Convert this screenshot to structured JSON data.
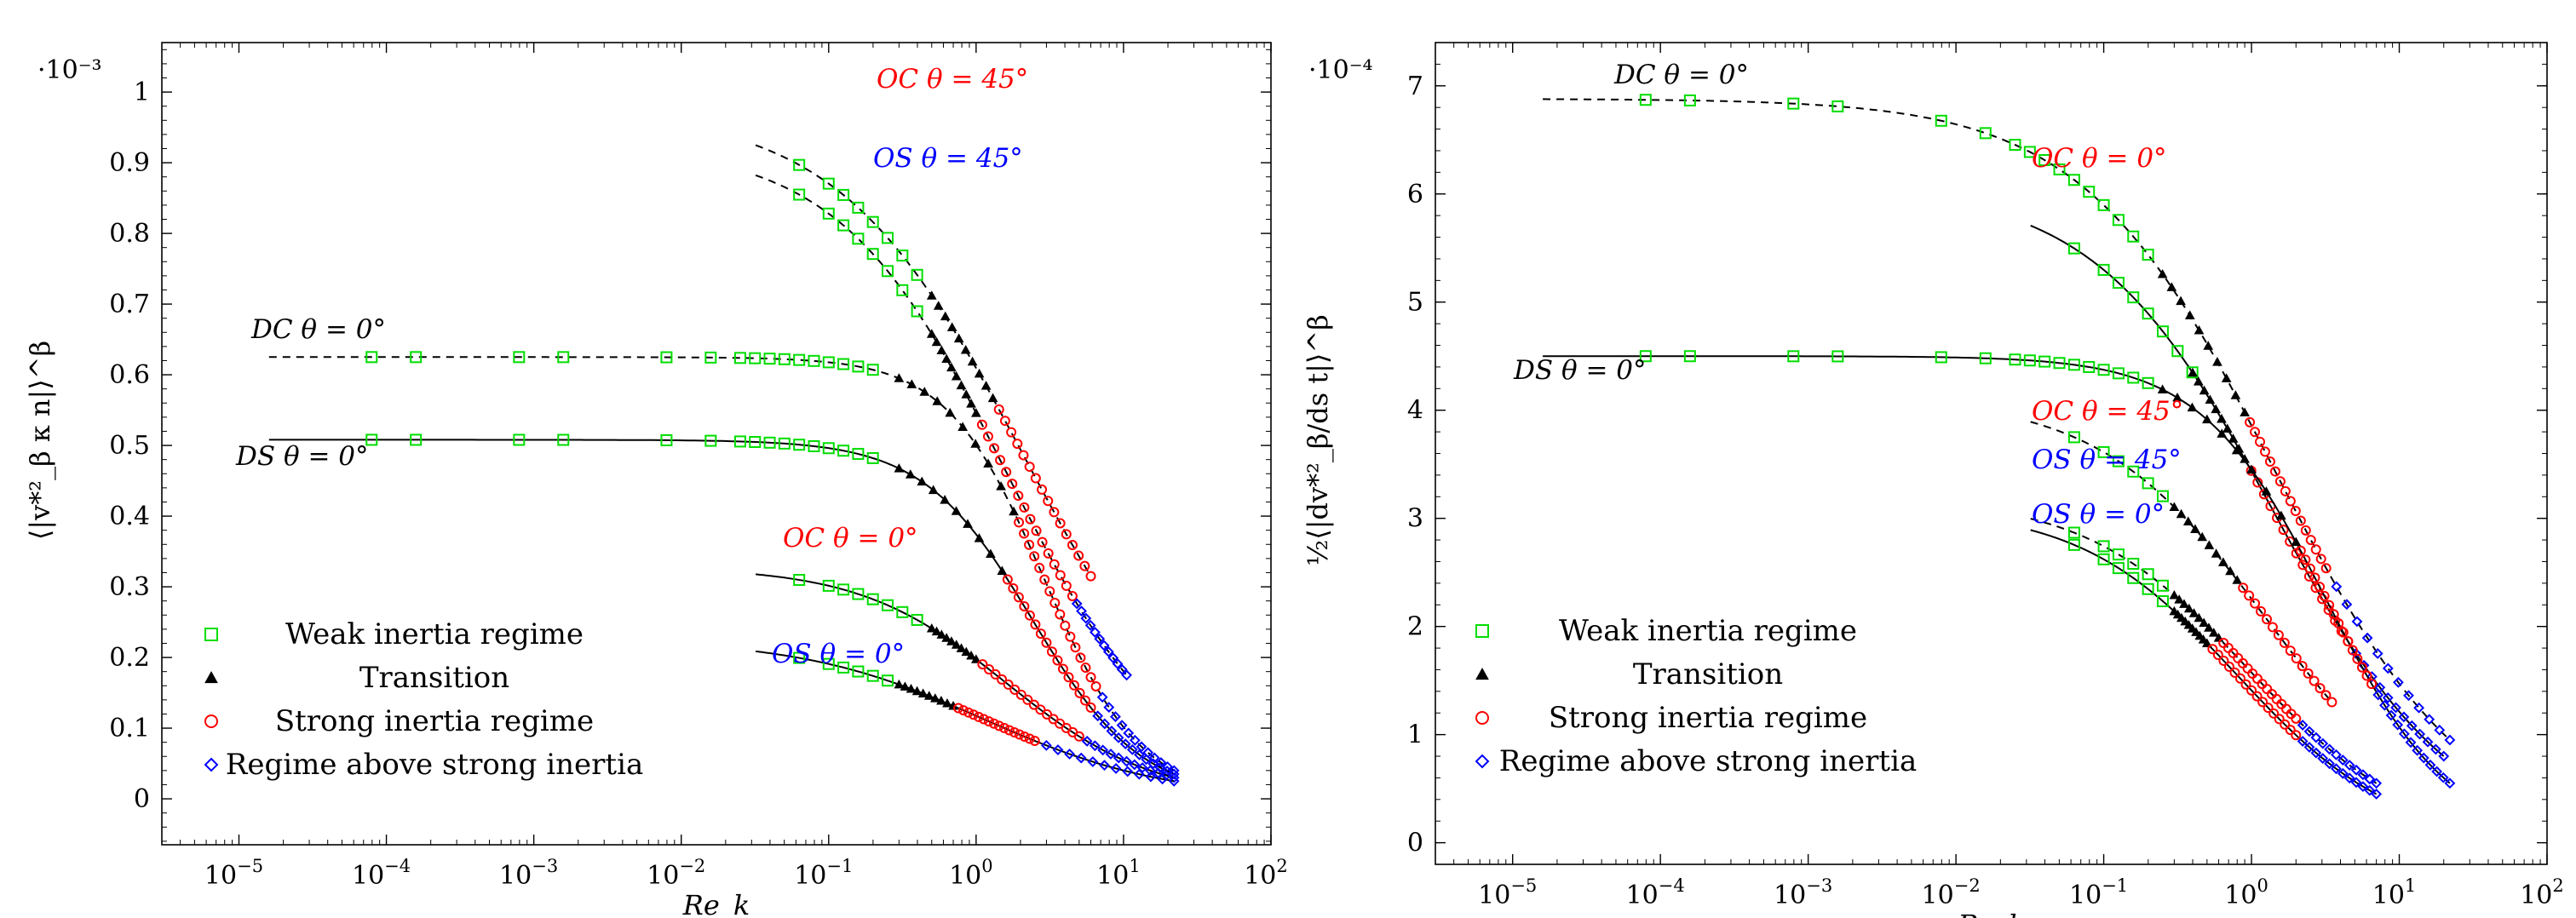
{
  "chart_data": [
    {
      "type": "line",
      "xscale": "log",
      "xlim": [
        3e-06,
        100
      ],
      "ylim": [
        -0.065,
        1.07
      ],
      "xlabel": "Re_k",
      "ylabel": "⟨|v*²_β κ n|⟩^β",
      "y_multiplier": "·10⁻³",
      "x_ticks": [
        {
          "value": 1e-05,
          "base": "10",
          "exp": "−5"
        },
        {
          "value": 0.0001,
          "base": "10",
          "exp": "−4"
        },
        {
          "value": 0.001,
          "base": "10",
          "exp": "−3"
        },
        {
          "value": 0.01,
          "base": "10",
          "exp": "−2"
        },
        {
          "value": 0.1,
          "base": "10",
          "exp": "−1"
        },
        {
          "value": 1,
          "base": "10",
          "exp": "0"
        },
        {
          "value": 10,
          "base": "10",
          "exp": "1"
        },
        {
          "value": 100,
          "base": "10",
          "exp": "2"
        }
      ],
      "y_ticks": [
        {
          "value": 0,
          "label": "0"
        },
        {
          "value": 0.1,
          "label": "0.1"
        },
        {
          "value": 0.2,
          "label": "0.2"
        },
        {
          "value": 0.3,
          "label": "0.3"
        },
        {
          "value": 0.4,
          "label": "0.4"
        },
        {
          "value": 0.5,
          "label": "0.5"
        },
        {
          "value": 0.6,
          "label": "0.6"
        },
        {
          "value": 0.7,
          "label": "0.7"
        },
        {
          "value": 0.8,
          "label": "0.8"
        },
        {
          "value": 0.9,
          "label": "0.9"
        },
        {
          "value": 1,
          "label": "1"
        }
      ],
      "legend": {
        "position": "bottom-left",
        "entries": [
          {
            "marker": "square",
            "color": "#00dd00",
            "label": "Weak inertia regime"
          },
          {
            "marker": "triangle",
            "color": "#000000",
            "label": "Transition"
          },
          {
            "marker": "circle",
            "color": "#ff0000",
            "label": "Strong inertia regime"
          },
          {
            "marker": "diamond",
            "color": "#0000ff",
            "label": "Regime above strong inertia"
          }
        ]
      },
      "series": [
        {
          "name": "OC θ = 45°",
          "dash": "dashed",
          "label_color": "#ff0000",
          "plateau": 0.975,
          "x_start": 0.032,
          "x_weak_end": 0.5,
          "x_trans_end": 1.3,
          "x_strong_end": 6.0,
          "x_end": 6.0,
          "y_end": 0.315
        },
        {
          "name": "OS θ = 45°",
          "dash": "dashed",
          "label_color": "#0000ff",
          "plateau": 0.925,
          "x_start": 0.032,
          "x_weak_end": 0.5,
          "x_trans_end": 1.0,
          "x_strong_end": 4.5,
          "x_end": 10.5,
          "y_end": 0.175
        },
        {
          "name": "DC θ = 0°",
          "dash": "dashed",
          "label_color": "#000000",
          "plateau": 0.625,
          "x_start": 1.6e-05,
          "x_weak_end": 0.3,
          "x_trans_end": 1.8,
          "x_strong_end": 6.5,
          "x_end": 22,
          "y_end": 0.04
        },
        {
          "name": "DS θ = 0°",
          "dash": "solid",
          "label_color": "#000000",
          "plateau": 0.508,
          "x_start": 1.6e-05,
          "x_weak_end": 0.3,
          "x_trans_end": 1.5,
          "x_strong_end": 6.0,
          "x_end": 22,
          "y_end": 0.035
        },
        {
          "name": "OC θ = 0°",
          "dash": "solid",
          "label_color": "#ff0000",
          "plateau": 0.328,
          "x_start": 0.032,
          "x_weak_end": 0.5,
          "x_trans_end": 1.0,
          "x_strong_end": 5.0,
          "x_end": 22,
          "y_end": 0.03
        },
        {
          "name": "OS θ = 0°",
          "dash": "solid",
          "label_color": "#0000ff",
          "plateau": 0.226,
          "x_start": 0.032,
          "x_weak_end": 0.3,
          "x_trans_end": 0.7,
          "x_strong_end": 2.5,
          "x_end": 22,
          "y_end": 0.025
        }
      ],
      "curve_labels": [
        {
          "text": "OC θ = 45°",
          "color": "#ff0000"
        },
        {
          "text": "OS θ = 45°",
          "color": "#0000ff"
        },
        {
          "text": "DC θ = 0°",
          "color": "#000000"
        },
        {
          "text": "DS θ = 0°",
          "color": "#000000"
        },
        {
          "text": "OC θ = 0°",
          "color": "#ff0000"
        },
        {
          "text": "OS θ = 0°",
          "color": "#0000ff"
        }
      ]
    },
    {
      "type": "line",
      "xscale": "log",
      "xlim": [
        3e-06,
        100
      ],
      "ylim": [
        -0.2,
        7.4
      ],
      "xlabel": "Re_k",
      "ylabel": "½⟨|dv*²_β/ds t|⟩^β",
      "y_multiplier": "·10⁻⁴",
      "x_ticks": [
        {
          "value": 1e-05,
          "base": "10",
          "exp": "−5"
        },
        {
          "value": 0.0001,
          "base": "10",
          "exp": "−4"
        },
        {
          "value": 0.001,
          "base": "10",
          "exp": "−3"
        },
        {
          "value": 0.01,
          "base": "10",
          "exp": "−2"
        },
        {
          "value": 0.1,
          "base": "10",
          "exp": "−1"
        },
        {
          "value": 1,
          "base": "10",
          "exp": "0"
        },
        {
          "value": 10,
          "base": "10",
          "exp": "1"
        },
        {
          "value": 100,
          "base": "10",
          "exp": "2"
        }
      ],
      "y_ticks": [
        {
          "value": 0,
          "label": "0"
        },
        {
          "value": 1,
          "label": "1"
        },
        {
          "value": 2,
          "label": "2"
        },
        {
          "value": 3,
          "label": "3"
        },
        {
          "value": 4,
          "label": "4"
        },
        {
          "value": 5,
          "label": "5"
        },
        {
          "value": 6,
          "label": "6"
        },
        {
          "value": 7,
          "label": "7"
        }
      ],
      "legend": {
        "position": "bottom-left",
        "entries": [
          {
            "marker": "square",
            "color": "#00dd00",
            "label": "Weak inertia regime"
          },
          {
            "marker": "triangle",
            "color": "#000000",
            "label": "Transition"
          },
          {
            "marker": "circle",
            "color": "#ff0000",
            "label": "Strong inertia regime"
          },
          {
            "marker": "diamond",
            "color": "#0000ff",
            "label": "Regime above strong inertia"
          }
        ]
      },
      "series": [
        {
          "name": "DC θ = 0°",
          "dash": "dashed",
          "label_color": "#000000",
          "plateau": 6.88,
          "x_start": 1.6e-05,
          "x_weak_end": 0.25,
          "x_trans_end": 0.9,
          "x_strong_end": 3.2,
          "x_end": 22,
          "y_end": 0.95
        },
        {
          "name": "OC θ = 0°",
          "dash": "solid",
          "label_color": "#ff0000",
          "plateau": 6.08,
          "x_start": 0.032,
          "x_weak_end": 0.4,
          "x_trans_end": 0.9,
          "x_strong_end": 4.5,
          "x_end": 20,
          "y_end": 0.8
        },
        {
          "name": "DS θ = 0°",
          "dash": "solid",
          "label_color": "#000000",
          "plateau": 4.5,
          "x_start": 1.6e-05,
          "x_weak_end": 0.25,
          "x_trans_end": 2.0,
          "x_strong_end": 6.5,
          "x_end": 22,
          "y_end": 0.55
        },
        {
          "name": "OC θ = 45°",
          "dash": "dashed",
          "label_color": "#ff0000",
          "plateau": 4.12,
          "x_start": 0.032,
          "x_weak_end": 0.3,
          "x_trans_end": 0.8,
          "x_strong_end": 3.5,
          "x_end": 3.5,
          "y_end": 1.3
        },
        {
          "name": "OS θ = 45°",
          "dash": "dashed",
          "label_color": "#0000ff",
          "plateau": 3.2,
          "x_start": 0.032,
          "x_weak_end": 0.3,
          "x_trans_end": 0.6,
          "x_strong_end": 2.0,
          "x_end": 7.0,
          "y_end": 0.55
        },
        {
          "name": "OS θ = 0°",
          "dash": "solid",
          "label_color": "#0000ff",
          "plateau": 3.1,
          "x_start": 0.032,
          "x_weak_end": 0.3,
          "x_trans_end": 0.5,
          "x_strong_end": 2.0,
          "x_end": 7.0,
          "y_end": 0.45
        }
      ],
      "curve_labels": [
        {
          "text": "DC θ = 0°",
          "color": "#000000"
        },
        {
          "text": "OC θ = 0°",
          "color": "#ff0000"
        },
        {
          "text": "DS θ = 0°",
          "color": "#000000"
        },
        {
          "text": "OC θ = 45°",
          "color": "#ff0000"
        },
        {
          "text": "OS θ = 45°",
          "color": "#0000ff"
        },
        {
          "text": "OS θ = 0°",
          "color": "#0000ff"
        }
      ]
    }
  ]
}
